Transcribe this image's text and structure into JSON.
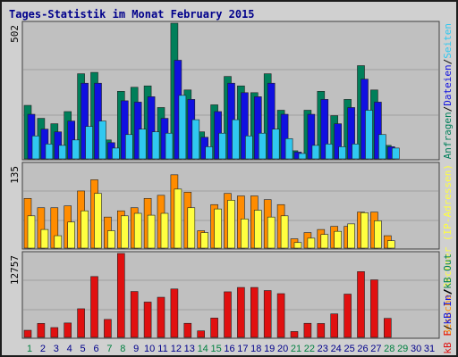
{
  "title": "Tages-Statistik im Monat February 2015",
  "colors": {
    "plot_bg": "#c0c0c0",
    "grid": "#a0a0a0",
    "anfragen": "#007f5a",
    "dateien": "#1010e0",
    "seiten": "#30c8f0",
    "besuche": "#ff8c00",
    "rechner": "#ffff40",
    "kbf": "#e01010",
    "day_weekend": "#008040",
    "day_weekday": "#00008b"
  },
  "chart_data": [
    {
      "type": "bar",
      "max_label": "502",
      "ylim": [
        0,
        502
      ],
      "right_label": [
        {
          "text": "Anfragen",
          "color": "#007f5a"
        },
        {
          "text": "/",
          "color": "#000000"
        },
        {
          "text": "Dateien",
          "color": "#1010e0"
        },
        {
          "text": "/",
          "color": "#000000"
        },
        {
          "text": "Seiten",
          "color": "#30c8f0"
        }
      ],
      "categories": [
        "1",
        "2",
        "3",
        "4",
        "5",
        "6",
        "7",
        "8",
        "9",
        "10",
        "11",
        "12",
        "13",
        "14",
        "15",
        "16",
        "17",
        "18",
        "19",
        "20",
        "21",
        "22",
        "23",
        "24",
        "25",
        "26",
        "27",
        "28",
        "29",
        "30",
        "31"
      ],
      "series": [
        {
          "name": "Anfragen",
          "color": "#007f5a",
          "values": [
            198,
            150,
            130,
            175,
            315,
            320,
            70,
            250,
            265,
            270,
            190,
            502,
            255,
            100,
            200,
            305,
            270,
            245,
            315,
            180,
            30,
            180,
            250,
            160,
            220,
            345,
            255,
            50,
            0,
            0,
            0
          ]
        },
        {
          "name": "Dateien",
          "color": "#1010e0",
          "values": [
            165,
            110,
            100,
            140,
            280,
            280,
            60,
            215,
            210,
            230,
            150,
            365,
            220,
            80,
            175,
            280,
            245,
            230,
            280,
            165,
            25,
            165,
            220,
            130,
            190,
            295,
            210,
            45,
            0,
            0,
            0
          ]
        },
        {
          "name": "Seiten",
          "color": "#30c8f0",
          "values": [
            85,
            55,
            50,
            70,
            120,
            140,
            40,
            90,
            110,
            100,
            95,
            235,
            145,
            45,
            95,
            145,
            85,
            95,
            110,
            75,
            20,
            50,
            55,
            45,
            55,
            180,
            90,
            40,
            0,
            0,
            0
          ]
        }
      ]
    },
    {
      "type": "bar",
      "max_label": "135",
      "ylim": [
        0,
        135
      ],
      "right_label": [
        {
          "text": "Besuche",
          "color": "#ff8c00"
        },
        {
          "text": "/",
          "color": "#000000"
        },
        {
          "text": "Rechner (IP-Adressen)",
          "color": "#ffff40"
        }
      ],
      "categories": [
        "1",
        "2",
        "3",
        "4",
        "5",
        "6",
        "7",
        "8",
        "9",
        "10",
        "11",
        "12",
        "13",
        "14",
        "15",
        "16",
        "17",
        "18",
        "19",
        "20",
        "21",
        "22",
        "23",
        "24",
        "25",
        "26",
        "27",
        "28",
        "29",
        "30",
        "31"
      ],
      "series": [
        {
          "name": "Besuche",
          "color": "#ff8c00",
          "values": [
            80,
            65,
            65,
            68,
            92,
            110,
            50,
            60,
            65,
            80,
            85,
            118,
            90,
            28,
            70,
            88,
            84,
            84,
            78,
            70,
            15,
            25,
            30,
            35,
            35,
            58,
            58,
            20,
            0,
            0,
            0
          ]
        },
        {
          "name": "Rechner (IP-Adressen)",
          "color": "#ffff40",
          "values": [
            52,
            30,
            20,
            42,
            60,
            88,
            28,
            52,
            56,
            53,
            56,
            95,
            65,
            25,
            63,
            77,
            47,
            61,
            50,
            52,
            9,
            16,
            22,
            27,
            39,
            57,
            44,
            12,
            0,
            0,
            0
          ]
        }
      ]
    },
    {
      "type": "bar",
      "max_label": "12757",
      "ylim": [
        0,
        12757
      ],
      "right_label": [
        {
          "text": "kB F",
          "color": "#e01010"
        },
        {
          "text": "/",
          "color": "#000000"
        },
        {
          "text": "kB In",
          "color": "#1010e0"
        },
        {
          "text": "/",
          "color": "#000000"
        },
        {
          "text": "kB Out",
          "color": "#007f5a"
        }
      ],
      "categories": [
        "1",
        "2",
        "3",
        "4",
        "5",
        "6",
        "7",
        "8",
        "9",
        "10",
        "11",
        "12",
        "13",
        "14",
        "15",
        "16",
        "17",
        "18",
        "19",
        "20",
        "21",
        "22",
        "23",
        "24",
        "25",
        "26",
        "27",
        "28",
        "29",
        "30",
        "31"
      ],
      "series": [
        {
          "name": "kB F",
          "color": "#e01010",
          "values": [
            1080,
            2120,
            1490,
            2190,
            4350,
            9250,
            2730,
            12757,
            6980,
            5370,
            6100,
            7360,
            2140,
            990,
            2940,
            6930,
            7590,
            7590,
            7120,
            6650,
            890,
            2140,
            2110,
            3570,
            6580,
            10000,
            8750,
            2890,
            0,
            0,
            0
          ]
        }
      ]
    }
  ],
  "days": [
    {
      "label": "1",
      "weekend": true
    },
    {
      "label": "2",
      "weekend": false
    },
    {
      "label": "3",
      "weekend": false
    },
    {
      "label": "4",
      "weekend": false
    },
    {
      "label": "5",
      "weekend": false
    },
    {
      "label": "6",
      "weekend": false
    },
    {
      "label": "7",
      "weekend": true
    },
    {
      "label": "8",
      "weekend": true
    },
    {
      "label": "9",
      "weekend": false
    },
    {
      "label": "10",
      "weekend": false
    },
    {
      "label": "11",
      "weekend": false
    },
    {
      "label": "12",
      "weekend": false
    },
    {
      "label": "13",
      "weekend": false
    },
    {
      "label": "14",
      "weekend": true
    },
    {
      "label": "15",
      "weekend": true
    },
    {
      "label": "16",
      "weekend": false
    },
    {
      "label": "17",
      "weekend": false
    },
    {
      "label": "18",
      "weekend": false
    },
    {
      "label": "19",
      "weekend": false
    },
    {
      "label": "20",
      "weekend": false
    },
    {
      "label": "21",
      "weekend": true
    },
    {
      "label": "22",
      "weekend": true
    },
    {
      "label": "23",
      "weekend": false
    },
    {
      "label": "24",
      "weekend": false
    },
    {
      "label": "25",
      "weekend": false
    },
    {
      "label": "26",
      "weekend": false
    },
    {
      "label": "27",
      "weekend": false
    },
    {
      "label": "28",
      "weekend": true
    },
    {
      "label": "29",
      "weekend": true
    },
    {
      "label": "30",
      "weekend": false
    },
    {
      "label": "31",
      "weekend": false
    }
  ]
}
